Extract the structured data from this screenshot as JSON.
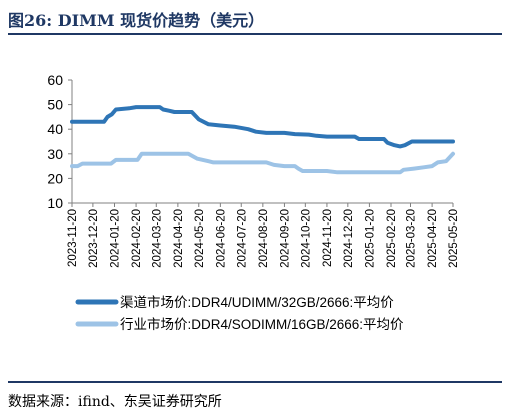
{
  "figure": {
    "title": "图26: DIMM 现货价趋势（美元）",
    "source": "数据来源：ifind、东吴证券研究所"
  },
  "colors": {
    "series_dark": "#2e75b6",
    "series_light": "#9dc3e6",
    "header_rule": "#1f3864",
    "axis": "#808080"
  },
  "chart_data": {
    "type": "line",
    "title": "",
    "xlabel": "",
    "ylabel": "",
    "ylim": [
      10,
      60
    ],
    "yticks": [
      10,
      20,
      30,
      40,
      50,
      60
    ],
    "grid": false,
    "legend_position": "bottom",
    "x_range": [
      "2023-11-20",
      "2025-05-20"
    ],
    "x_ticks": [
      "2023-11-20",
      "2023-12-20",
      "2024-01-20",
      "2024-02-20",
      "2024-03-20",
      "2024-04-20",
      "2024-05-20",
      "2024-06-20",
      "2024-07-20",
      "2024-08-20",
      "2024-09-20",
      "2024-10-20",
      "2024-11-20",
      "2024-12-20",
      "2025-01-20",
      "2025-02-20",
      "2025-03-20",
      "2025-04-20",
      "2025-05-20"
    ],
    "series": [
      {
        "name": "渠道市场价:DDR4/UDIMM/32GB/2666:平均价",
        "color": "#2e75b6",
        "points": [
          [
            "2023-11-20",
            43
          ],
          [
            "2024-01-05",
            43
          ],
          [
            "2024-01-10",
            45
          ],
          [
            "2024-01-16",
            46
          ],
          [
            "2024-01-22",
            48
          ],
          [
            "2024-02-10",
            48.5
          ],
          [
            "2024-02-20",
            49
          ],
          [
            "2024-03-25",
            49
          ],
          [
            "2024-03-30",
            48
          ],
          [
            "2024-04-08",
            47.5
          ],
          [
            "2024-04-15",
            47
          ],
          [
            "2024-05-10",
            47
          ],
          [
            "2024-05-20",
            44
          ],
          [
            "2024-06-03",
            42
          ],
          [
            "2024-06-20",
            41.5
          ],
          [
            "2024-07-10",
            41
          ],
          [
            "2024-07-30",
            40
          ],
          [
            "2024-08-10",
            39
          ],
          [
            "2024-08-25",
            38.5
          ],
          [
            "2024-09-20",
            38.5
          ],
          [
            "2024-10-05",
            38
          ],
          [
            "2024-10-25",
            37.8
          ],
          [
            "2024-11-05",
            37.3
          ],
          [
            "2024-11-20",
            37
          ],
          [
            "2024-12-30",
            37
          ],
          [
            "2025-01-05",
            36
          ],
          [
            "2025-02-10",
            36
          ],
          [
            "2025-02-15",
            34.5
          ],
          [
            "2025-02-25",
            33.5
          ],
          [
            "2025-03-05",
            33
          ],
          [
            "2025-03-12",
            33.5
          ],
          [
            "2025-03-22",
            35
          ],
          [
            "2025-05-20",
            35
          ]
        ]
      },
      {
        "name": "行业市场价:DDR4/SODIMM/16GB/2666:平均价",
        "color": "#9dc3e6",
        "points": [
          [
            "2023-11-20",
            25
          ],
          [
            "2023-11-28",
            25
          ],
          [
            "2023-12-05",
            26
          ],
          [
            "2024-01-15",
            26
          ],
          [
            "2024-01-22",
            27.5
          ],
          [
            "2024-02-10",
            27.5
          ],
          [
            "2024-02-22",
            27.5
          ],
          [
            "2024-02-28",
            30
          ],
          [
            "2024-04-20",
            30
          ],
          [
            "2024-05-05",
            30
          ],
          [
            "2024-05-18",
            28
          ],
          [
            "2024-06-03",
            27
          ],
          [
            "2024-06-10",
            26.5
          ],
          [
            "2024-08-25",
            26.5
          ],
          [
            "2024-09-05",
            25.5
          ],
          [
            "2024-09-20",
            25
          ],
          [
            "2024-10-05",
            25
          ],
          [
            "2024-10-10",
            24
          ],
          [
            "2024-10-16",
            23
          ],
          [
            "2024-11-20",
            23
          ],
          [
            "2024-12-05",
            22.5
          ],
          [
            "2025-03-05",
            22.5
          ],
          [
            "2025-03-10",
            23.5
          ],
          [
            "2025-03-25",
            24
          ],
          [
            "2025-04-08",
            24.5
          ],
          [
            "2025-04-20",
            25
          ],
          [
            "2025-04-28",
            26.5
          ],
          [
            "2025-05-10",
            27
          ],
          [
            "2025-05-15",
            28.5
          ],
          [
            "2025-05-20",
            30
          ]
        ]
      }
    ]
  }
}
